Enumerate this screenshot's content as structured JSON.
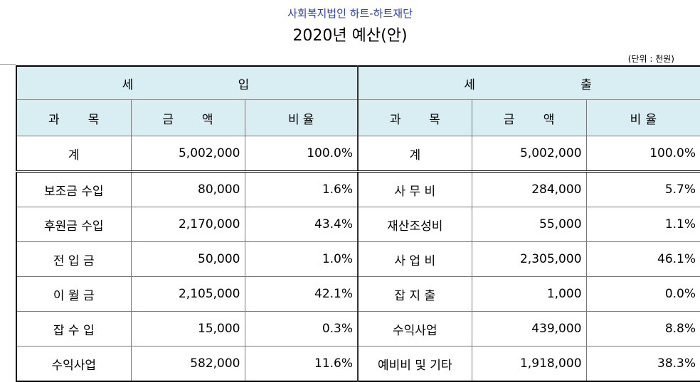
{
  "header": {
    "org": "사회복지법인 하트-하트재단",
    "title": "2020년 예산(안)",
    "unit": "(단위 : 천원)"
  },
  "sections": {
    "income": [
      "세",
      "입"
    ],
    "expense": [
      "세",
      "출"
    ]
  },
  "columns": {
    "item": [
      "과",
      "목"
    ],
    "amount": [
      "금",
      "액"
    ],
    "ratio": [
      "비",
      "율"
    ]
  },
  "total": {
    "income": {
      "label": "계",
      "amount": "5,002,000",
      "ratio": "100.0%"
    },
    "expense": {
      "label": "계",
      "amount": "5,002,000",
      "ratio": "100.0%"
    }
  },
  "rows": [
    {
      "in_label": "보조금 수입",
      "in_amount": "80,000",
      "in_ratio": "1.6%",
      "ex_label": "사 무 비",
      "ex_amount": "284,000",
      "ex_ratio": "5.7%"
    },
    {
      "in_label": "후원금 수입",
      "in_amount": "2,170,000",
      "in_ratio": "43.4%",
      "ex_label": "재산조성비",
      "ex_amount": "55,000",
      "ex_ratio": "1.1%"
    },
    {
      "in_label": "전 입 금",
      "in_amount": "50,000",
      "in_ratio": "1.0%",
      "ex_label": "사 업 비",
      "ex_amount": "2,305,000",
      "ex_ratio": "46.1%"
    },
    {
      "in_label": "이 월 금",
      "in_amount": "2,105,000",
      "in_ratio": "42.1%",
      "ex_label": "잡 지 출",
      "ex_amount": "1,000",
      "ex_ratio": "0.0%"
    },
    {
      "in_label": "잡 수 입",
      "in_amount": "15,000",
      "in_ratio": "0.3%",
      "ex_label": "수익사업",
      "ex_amount": "439,000",
      "ex_ratio": "8.8%"
    },
    {
      "in_label": "수익사업",
      "in_amount": "582,000",
      "in_ratio": "11.6%",
      "ex_label": "예비비 및 기타",
      "ex_amount": "1,918,000",
      "ex_ratio": "38.3%"
    }
  ]
}
